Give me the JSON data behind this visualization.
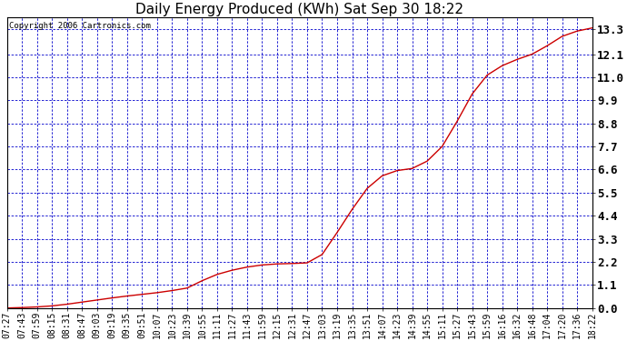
{
  "title": "Daily Energy Produced (KWh) Sat Sep 30 18:22",
  "copyright_text": "Copyright 2006 Cartronics.com",
  "background_color": "#FFFFFF",
  "plot_bg_color": "#FFFFFF",
  "line_color": "#CC0000",
  "grid_color": "#0000CC",
  "y_tick_labels": [
    "0.0",
    "1.1",
    "2.2",
    "3.3",
    "4.4",
    "5.5",
    "6.6",
    "7.7",
    "8.8",
    "9.9",
    "11.0",
    "12.1",
    "13.3"
  ],
  "y_tick_values": [
    0.0,
    1.1,
    2.2,
    3.3,
    4.4,
    5.5,
    6.6,
    7.7,
    8.8,
    9.9,
    11.0,
    12.1,
    13.3
  ],
  "y_max": 13.86,
  "x_labels": [
    "07:27",
    "07:43",
    "07:59",
    "08:15",
    "08:31",
    "08:47",
    "09:03",
    "09:19",
    "09:35",
    "09:51",
    "10:07",
    "10:23",
    "10:39",
    "10:55",
    "11:11",
    "11:27",
    "11:43",
    "11:59",
    "12:15",
    "12:31",
    "12:47",
    "13:03",
    "13:19",
    "13:35",
    "13:51",
    "14:07",
    "14:23",
    "14:39",
    "14:55",
    "15:11",
    "15:27",
    "15:43",
    "15:59",
    "16:16",
    "16:32",
    "16:48",
    "17:04",
    "17:20",
    "17:36",
    "18:22"
  ],
  "data_y": [
    0.0,
    0.02,
    0.05,
    0.1,
    0.18,
    0.28,
    0.38,
    0.48,
    0.57,
    0.65,
    0.73,
    0.83,
    0.95,
    1.3,
    1.6,
    1.8,
    1.95,
    2.05,
    2.1,
    2.12,
    2.15,
    2.55,
    3.6,
    4.7,
    5.7,
    6.3,
    6.55,
    6.65,
    7.0,
    7.7,
    8.9,
    10.2,
    11.1,
    11.55,
    11.85,
    12.1,
    12.5,
    12.95,
    13.2,
    13.35
  ],
  "title_fontsize": 11,
  "tick_fontsize": 7,
  "copyright_fontsize": 6.5,
  "ytick_fontweight": "bold",
  "ytick_fontsize": 9
}
